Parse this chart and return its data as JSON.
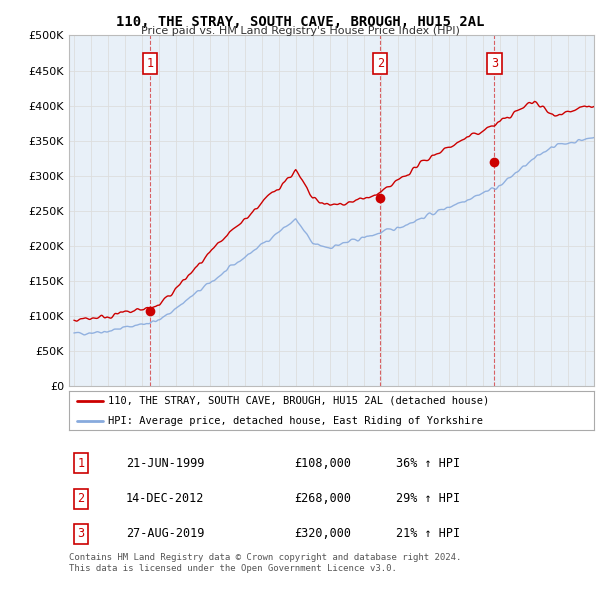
{
  "title": "110, THE STRAY, SOUTH CAVE, BROUGH, HU15 2AL",
  "subtitle": "Price paid vs. HM Land Registry's House Price Index (HPI)",
  "ylim": [
    0,
    500000
  ],
  "xlim_start": 1994.7,
  "xlim_end": 2025.5,
  "red_line_label": "110, THE STRAY, SOUTH CAVE, BROUGH, HU15 2AL (detached house)",
  "blue_line_label": "HPI: Average price, detached house, East Riding of Yorkshire",
  "transactions": [
    {
      "num": 1,
      "date": "21-JUN-1999",
      "price": 108000,
      "pct": "36%",
      "dir": "↑",
      "ref": "HPI",
      "year": 1999.47
    },
    {
      "num": 2,
      "date": "14-DEC-2012",
      "price": 268000,
      "pct": "29%",
      "dir": "↑",
      "ref": "HPI",
      "year": 2012.96
    },
    {
      "num": 3,
      "date": "27-AUG-2019",
      "price": 320000,
      "pct": "21%",
      "dir": "↑",
      "ref": "HPI",
      "year": 2019.66
    }
  ],
  "footnote1": "Contains HM Land Registry data © Crown copyright and database right 2024.",
  "footnote2": "This data is licensed under the Open Government Licence v3.0.",
  "red_color": "#cc0000",
  "blue_color": "#88aadd",
  "grid_color": "#dddddd",
  "background_color": "#ffffff",
  "plot_bg_color": "#e8f0f8"
}
